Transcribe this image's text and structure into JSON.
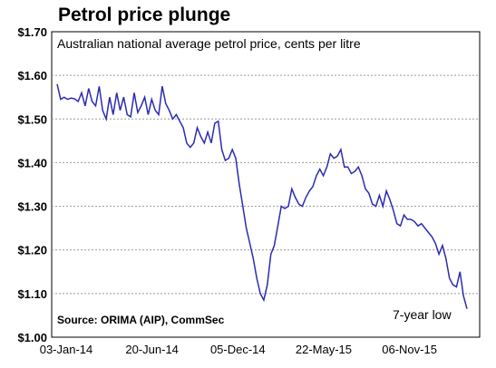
{
  "chart_data": {
    "type": "line",
    "title": "Petrol price plunge",
    "subtitle": "Australian national average petrol price, cents per litre",
    "source": "Source: ORIMA (AIP), CommSec",
    "annotation": "7-year low",
    "xlabel": "",
    "ylabel": "",
    "ylim": [
      1.0,
      1.7
    ],
    "y_tick_values": [
      1.0,
      1.1,
      1.2,
      1.3,
      1.4,
      1.5,
      1.6,
      1.7
    ],
    "y_tick_labels": [
      "$1.00",
      "$1.10",
      "$1.20",
      "$1.30",
      "$1.40",
      "$1.50",
      "$1.60",
      "$1.70"
    ],
    "x_tick_labels": [
      "03-Jan-14",
      "20-Jun-14",
      "05-Dec-14",
      "22-May-15",
      "06-Nov-15"
    ],
    "grid": true,
    "series": [
      {
        "color": "#2b2bb3",
        "values": [
          1.58,
          1.545,
          1.55,
          1.545,
          1.548,
          1.546,
          1.54,
          1.56,
          1.53,
          1.57,
          1.54,
          1.53,
          1.575,
          1.52,
          1.5,
          1.55,
          1.51,
          1.56,
          1.52,
          1.55,
          1.51,
          1.505,
          1.56,
          1.515,
          1.53,
          1.55,
          1.51,
          1.545,
          1.52,
          1.51,
          1.575,
          1.535,
          1.52,
          1.5,
          1.51,
          1.495,
          1.48,
          1.445,
          1.435,
          1.445,
          1.48,
          1.46,
          1.445,
          1.47,
          1.445,
          1.49,
          1.495,
          1.43,
          1.405,
          1.41,
          1.43,
          1.41,
          1.35,
          1.3,
          1.25,
          1.215,
          1.18,
          1.135,
          1.1,
          1.085,
          1.12,
          1.19,
          1.21,
          1.255,
          1.3,
          1.295,
          1.3,
          1.34,
          1.32,
          1.305,
          1.3,
          1.32,
          1.335,
          1.345,
          1.37,
          1.385,
          1.37,
          1.39,
          1.42,
          1.41,
          1.415,
          1.43,
          1.39,
          1.39,
          1.375,
          1.38,
          1.39,
          1.37,
          1.34,
          1.33,
          1.305,
          1.3,
          1.325,
          1.3,
          1.335,
          1.315,
          1.29,
          1.26,
          1.255,
          1.28,
          1.27,
          1.27,
          1.265,
          1.255,
          1.26,
          1.25,
          1.24,
          1.23,
          1.215,
          1.19,
          1.21,
          1.18,
          1.135,
          1.12,
          1.115,
          1.15,
          1.095,
          1.065
        ]
      }
    ]
  }
}
